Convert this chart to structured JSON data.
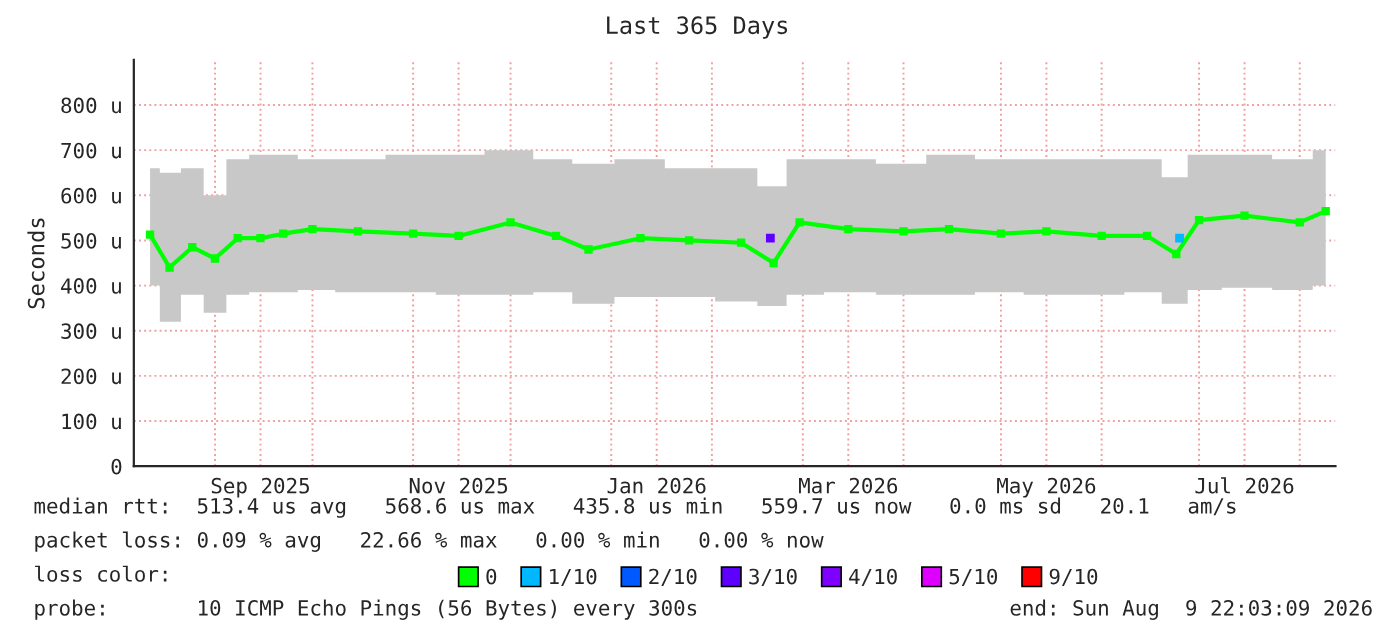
{
  "chart_data": {
    "type": "line",
    "title": "Last 365 Days",
    "ylabel": "Seconds",
    "xlim": [
      "2025-08-07",
      "2026-08-12"
    ],
    "ylim": [
      0,
      900
    ],
    "xticks": [
      {
        "value": "2025-09-01",
        "label": null
      },
      {
        "value": "2025-09-15",
        "label": "Sep 2025"
      },
      {
        "value": "2025-10-01",
        "label": null
      },
      {
        "value": "2025-11-01",
        "label": null
      },
      {
        "value": "2025-11-15",
        "label": "Nov 2025"
      },
      {
        "value": "2025-12-01",
        "label": null
      },
      {
        "value": "2026-01-01",
        "label": null
      },
      {
        "value": "2026-01-15",
        "label": "Jan 2026"
      },
      {
        "value": "2026-02-01",
        "label": null
      },
      {
        "value": "2026-03-01",
        "label": null
      },
      {
        "value": "2026-03-15",
        "label": "Mar 2026"
      },
      {
        "value": "2026-04-01",
        "label": null
      },
      {
        "value": "2026-05-01",
        "label": null
      },
      {
        "value": "2026-05-15",
        "label": "May 2026"
      },
      {
        "value": "2026-06-01",
        "label": null
      },
      {
        "value": "2026-07-01",
        "label": null
      },
      {
        "value": "2026-07-15",
        "label": "Jul 2026"
      },
      {
        "value": "2026-08-01",
        "label": null
      }
    ],
    "yticks": [
      {
        "value": 0,
        "label": "0"
      },
      {
        "value": 100,
        "label": "100 u"
      },
      {
        "value": 200,
        "label": "200 u"
      },
      {
        "value": 300,
        "label": "300 u"
      },
      {
        "value": 400,
        "label": "400 u"
      },
      {
        "value": 500,
        "label": "500 u"
      },
      {
        "value": 600,
        "label": "600 u"
      },
      {
        "value": 700,
        "label": "700 u"
      },
      {
        "value": 800,
        "label": "800 u"
      }
    ],
    "grid": true,
    "legend": "bottom",
    "marker": "square",
    "x": [
      "2025-08-12",
      "2025-08-18",
      "2025-08-25",
      "2025-09-01",
      "2025-09-08",
      "2025-09-15",
      "2025-09-22",
      "2025-10-01",
      "2025-10-15",
      "2025-11-01",
      "2025-11-15",
      "2025-12-01",
      "2025-12-15",
      "2025-12-25",
      "2026-01-10",
      "2026-01-25",
      "2026-02-10",
      "2026-02-20",
      "2026-02-28",
      "2026-03-15",
      "2026-04-01",
      "2026-04-15",
      "2026-05-01",
      "2026-05-15",
      "2026-06-01",
      "2026-06-15",
      "2026-06-24",
      "2026-07-01",
      "2026-07-15",
      "2026-08-01",
      "2026-08-09"
    ],
    "series": [
      {
        "name": "0",
        "color": "#00ff00",
        "values": [
          513,
          440,
          485,
          460,
          505,
          505,
          515,
          525,
          520,
          515,
          510,
          540,
          510,
          480,
          505,
          500,
          495,
          450,
          540,
          525,
          520,
          525,
          515,
          520,
          510,
          510,
          470,
          545,
          555,
          540,
          565
        ],
        "lower": [
          400,
          320,
          380,
          340,
          380,
          385,
          385,
          390,
          385,
          385,
          380,
          380,
          385,
          360,
          375,
          375,
          365,
          355,
          380,
          385,
          380,
          380,
          385,
          380,
          380,
          385,
          360,
          390,
          395,
          390,
          400
        ],
        "upper": [
          660,
          650,
          660,
          600,
          680,
          690,
          690,
          680,
          680,
          690,
          690,
          700,
          680,
          670,
          680,
          660,
          660,
          620,
          680,
          680,
          670,
          690,
          680,
          680,
          680,
          680,
          640,
          690,
          690,
          680,
          700
        ]
      },
      {
        "name": "1/10",
        "color": "#00b8ff",
        "type": "scatter",
        "x": [
          "2026-06-25"
        ],
        "values": [
          505
        ]
      },
      {
        "name": "2/10",
        "color": "#0059ff",
        "type": "scatter",
        "values": [
          null,
          null,
          null,
          null,
          null,
          null,
          null,
          null,
          null,
          null,
          null,
          null,
          null,
          null,
          null,
          null,
          null,
          null,
          null,
          null,
          null,
          null,
          null,
          null,
          null,
          null,
          null,
          null,
          null,
          null,
          null
        ]
      },
      {
        "name": "3/10",
        "color": "#5e00ff",
        "type": "scatter",
        "x": [
          "2026-02-19"
        ],
        "values": [
          505
        ]
      },
      {
        "name": "4/10",
        "color": "#7e00ff",
        "type": "scatter",
        "values": [
          null,
          null,
          null,
          null,
          null,
          null,
          null,
          null,
          null,
          null,
          null,
          null,
          null,
          null,
          null,
          null,
          null,
          null,
          null,
          null,
          null,
          null,
          null,
          null,
          null,
          null,
          null,
          null,
          null,
          null,
          null
        ]
      },
      {
        "name": "5/10",
        "color": "#dd00ff",
        "type": "scatter",
        "values": [
          null,
          null,
          null,
          null,
          null,
          null,
          null,
          null,
          null,
          null,
          null,
          null,
          null,
          null,
          null,
          null,
          null,
          null,
          null,
          null,
          null,
          null,
          null,
          null,
          null,
          null,
          null,
          null,
          null,
          null,
          null
        ]
      },
      {
        "name": "9/10",
        "color": "#ff0000",
        "type": "scatter",
        "values": [
          null,
          null,
          null,
          null,
          null,
          null,
          null,
          null,
          null,
          null,
          null,
          null,
          null,
          null,
          null,
          null,
          null,
          null,
          null,
          null,
          null,
          null,
          null,
          null,
          null,
          null,
          null,
          null,
          null,
          null,
          null
        ]
      }
    ],
    "annotations": [
      "median rtt:  513.4 us avg   568.6 us max   435.8 us min   559.7 us now   0.0 ms sd   20.1   am/s",
      "packet loss: 0.09 % avg   22.66 % max   0.00 % min   0.00 % now",
      "loss color:",
      "probe:       10 ICMP Echo Pings (56 Bytes) every 300s",
      "end: Sun Aug  9 22:03:09 2026"
    ]
  }
}
